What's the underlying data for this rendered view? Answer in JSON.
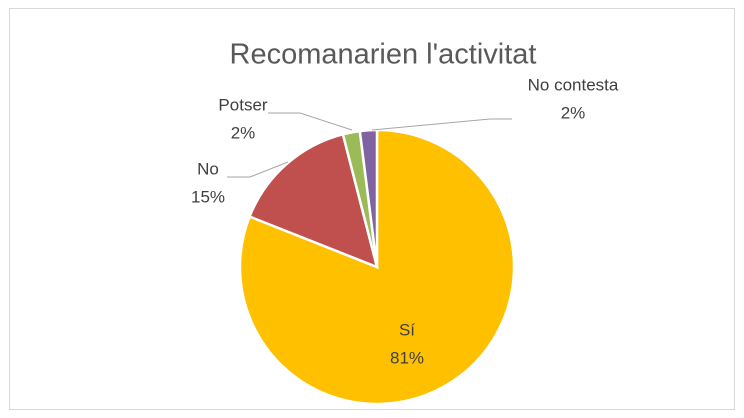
{
  "chart_data": {
    "type": "pie",
    "title": "Recomanarien l'activitat",
    "categories": [
      "Sí",
      "No",
      "Potser",
      "No contesta"
    ],
    "values": [
      81,
      15,
      2,
      2
    ],
    "value_labels": [
      "81%",
      "15%",
      "2%",
      "2%"
    ],
    "colors": [
      "#FFC000",
      "#C0504D",
      "#9BBB59",
      "#8064A2"
    ]
  }
}
